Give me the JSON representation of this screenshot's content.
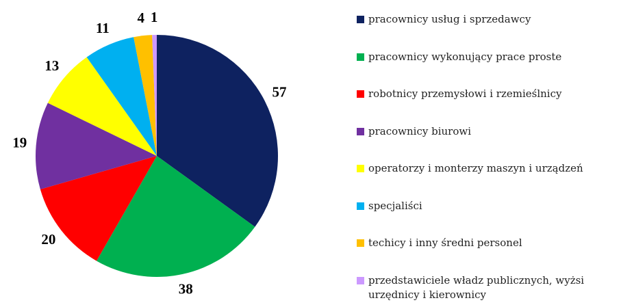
{
  "chart_data": {
    "type": "pie",
    "categories": [
      "pracownicy usług i sprzedawcy",
      "pracownicy wykonujący prace proste",
      "robotnicy przemysłowi i rzemieślnicy",
      "pracownicy biurowi",
      "operatorzy i monterzy maszyn i urządzeń",
      "specjaliści",
      "techicy i inny średni personel",
      "przedstawiciele władz publicznych, wyżsi urzędnicy i kierownicy"
    ],
    "values": [
      57,
      38,
      20,
      19,
      13,
      11,
      4,
      1
    ],
    "colors": [
      "#0e2260",
      "#00b050",
      "#ff0000",
      "#7030a0",
      "#ffff00",
      "#00b0f0",
      "#ffc000",
      "#cc99ff"
    ],
    "legend": "right"
  }
}
